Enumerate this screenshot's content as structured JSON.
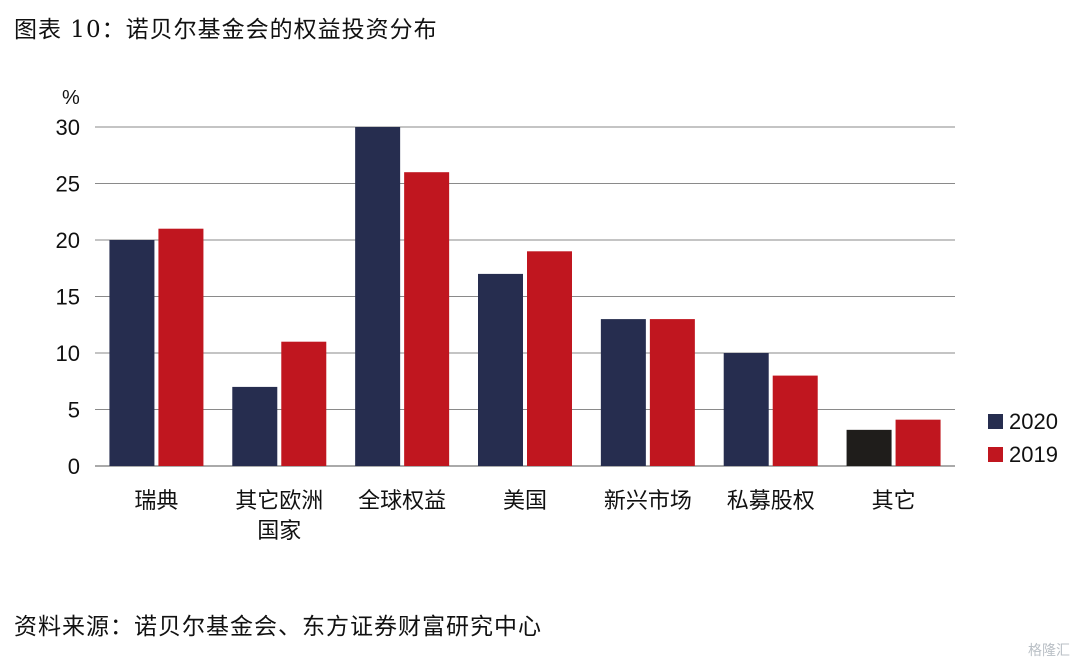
{
  "title": "图表 10：诺贝尔基金会的权益投资分布",
  "source": "资料来源：诺贝尔基金会、东方证券财富研究中心",
  "watermark": "格隆汇",
  "chart_data": {
    "type": "bar",
    "ylabel": "%",
    "ylim": [
      0,
      30
    ],
    "yticks": [
      0,
      5,
      10,
      15,
      20,
      25,
      30
    ],
    "grid": true,
    "legend_position": "right",
    "categories": [
      [
        "瑞典"
      ],
      [
        "其它欧洲",
        "国家"
      ],
      [
        "全球权益"
      ],
      [
        "美国"
      ],
      [
        "新兴市场"
      ],
      [
        "私募股权"
      ],
      [
        "其它"
      ]
    ],
    "series": [
      {
        "name": "2020",
        "color": "#262d4f",
        "values": [
          20,
          7,
          30,
          17,
          13,
          10,
          3.2
        ]
      },
      {
        "name": "2019",
        "color": "#c0161f",
        "values": [
          21,
          11,
          26,
          19,
          13,
          8,
          4.1
        ]
      }
    ],
    "highlight": {
      "series": 0,
      "index": 6,
      "color": "#1f1d1b"
    }
  }
}
